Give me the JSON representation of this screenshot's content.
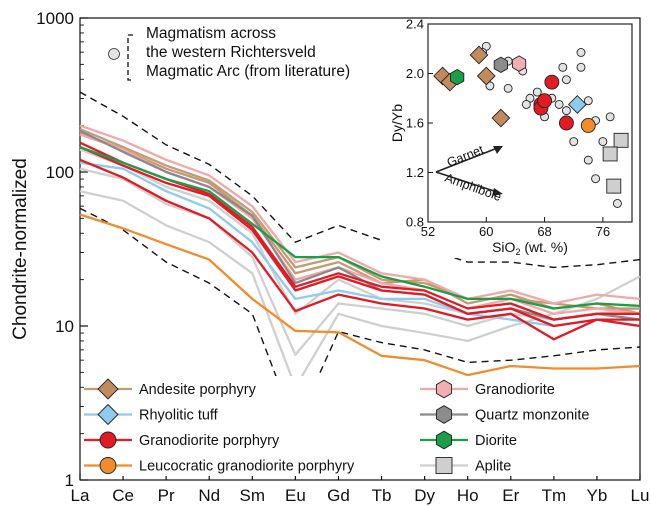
{
  "chart_data": [
    {
      "type": "line",
      "ylabel": "Chondrite-normalized",
      "scale": "log",
      "ylim": [
        1,
        1000
      ],
      "y_ticks": [
        "1",
        "10",
        "100",
        "1000"
      ],
      "categories": [
        "La",
        "Ce",
        "Pr",
        "Nd",
        "Sm",
        "Eu",
        "Gd",
        "Tb",
        "Dy",
        "Ho",
        "Er",
        "Tm",
        "Yb",
        "Lu"
      ],
      "field_legend": [
        "Magmatism across",
        "the western Richtersveld",
        "Magmatic Arc (from literature)"
      ],
      "field": {
        "upper": [
          330,
          230,
          150,
          112,
          70,
          35,
          45,
          36,
          32,
          26,
          26,
          24,
          25,
          27
        ],
        "lower": [
          58,
          42,
          26,
          19,
          12,
          2.2,
          9.2,
          7.8,
          7,
          5.8,
          6,
          6.4,
          7,
          7.3
        ]
      },
      "legend_left": [
        "Andesite porphyry",
        "Rhyolitic tuff",
        "Granodiorite porphyry",
        "Leucocratic granodiorite porphyry"
      ],
      "legend_right": [
        "Granodiorite",
        "Quartz monzonite",
        "Diorite",
        "Aplite"
      ],
      "series": [
        {
          "name": "Aplite",
          "color": "#cfcfcf",
          "lines": [
            [
              75,
              65,
              45,
              35,
              22,
              4,
              12,
              10,
              9,
              8,
              10,
              12,
              15,
              21
            ],
            [
              105,
              90,
              62,
              50,
              28,
              6.5,
              14,
              13,
              12,
              10,
              12,
              11,
              12,
              13
            ],
            [
              140,
              110,
              80,
              65,
              40,
              12,
              20,
              15,
              14,
              12,
              13,
              11,
              12,
              11
            ]
          ]
        },
        {
          "name": "Andesite porphyry",
          "color": "#c49a74",
          "lines": [
            [
              180,
              140,
              105,
              85,
              52,
              22,
              26,
              19,
              20,
              14,
              16,
              13,
              14,
              12
            ],
            [
              190,
              145,
              110,
              88,
              55,
              24,
              28,
              20,
              19,
              15,
              15,
              14,
              13,
              13
            ]
          ]
        },
        {
          "name": "Granodiorite",
          "color": "#f0a8a8",
          "lines": [
            [
              200,
              160,
              120,
              95,
              60,
              26,
              30,
              22,
              20,
              15,
              17,
              14,
              16,
              15
            ],
            [
              175,
              140,
              100,
              80,
              50,
              20,
              24,
              19,
              17,
              13,
              15,
              12,
              13,
              12
            ]
          ]
        },
        {
          "name": "Quartz monzonite",
          "color": "#8a8a8a",
          "lines": [
            [
              185,
              135,
              100,
              80,
              52,
              19,
              24,
              17,
              16,
              12,
              13,
              11,
              12,
              11
            ]
          ]
        },
        {
          "name": "Rhyolitic tuff",
          "color": "#8fcbed",
          "lines": [
            [
              115,
              105,
              75,
              58,
              35,
              15,
              17,
              15,
              15,
              12,
              11,
              10,
              11,
              10
            ]
          ]
        },
        {
          "name": "Granodiorite porphyry",
          "color": "#e01b24",
          "lines": [
            [
              120,
              92,
              65,
              50,
              30,
              12.5,
              16,
              14,
              13,
              11,
              12,
              8.2,
              11,
              10
            ],
            [
              145,
              110,
              85,
              70,
              42,
              17,
              21,
              17,
              16,
              12,
              13,
              10,
              11,
              11
            ],
            [
              155,
              115,
              90,
              72,
              44,
              18,
              22,
              18,
              17,
              13,
              14,
              11,
              12,
              12
            ]
          ]
        },
        {
          "name": "Leucocratic granodiorite porphyry",
          "color": "#f08c2c",
          "lines": [
            [
              53,
              43,
              34,
              27,
              15,
              9.3,
              9.1,
              6.4,
              6,
              4.8,
              5.5,
              5.3,
              5.3,
              5.5
            ]
          ]
        },
        {
          "name": "Diorite",
          "color": "#1a9e4a",
          "lines": [
            [
              145,
              115,
              90,
              75,
              46,
              28,
              28,
              21,
              18,
              15,
              15,
              13,
              14,
              13.5
            ]
          ]
        }
      ]
    },
    {
      "type": "scatter",
      "xlabel": "SiO2 (wt. %)",
      "ylabel": "Dy/Yb",
      "xlim": [
        52,
        80
      ],
      "ylim": [
        0.8,
        2.4
      ],
      "x_ticks": [
        "52",
        "60",
        "68",
        "76"
      ],
      "y_ticks": [
        "0.8",
        "1.2",
        "1.6",
        "2.0",
        "2.4"
      ],
      "arrow_labels": [
        "Garnet",
        "Amphibole"
      ],
      "series": [
        {
          "name": "Literature",
          "marker": "circle",
          "color": "#e3e3e3",
          "points": [
            [
              60,
              2.22
            ],
            [
              59.5,
              2.17
            ],
            [
              63,
              2.1
            ],
            [
              65,
              2.02
            ],
            [
              60.5,
              1.9
            ],
            [
              63,
              1.88
            ],
            [
              66,
              1.8
            ],
            [
              65.5,
              1.75
            ],
            [
              70,
              1.75
            ],
            [
              70.5,
              2.05
            ],
            [
              71,
              1.95
            ],
            [
              73,
              2.05
            ],
            [
              73,
              2.17
            ],
            [
              74,
              1.78
            ],
            [
              75,
              1.62
            ],
            [
              77,
              1.65
            ],
            [
              74,
              1.3
            ],
            [
              75,
              1.15
            ],
            [
              78,
              0.95
            ],
            [
              76,
              1.45
            ],
            [
              72,
              1.45
            ],
            [
              67,
              1.85
            ],
            [
              68,
              1.65
            ],
            [
              69,
              1.8
            ],
            [
              71,
              1.7
            ]
          ]
        },
        {
          "name": "Andesite porphyry",
          "marker": "diamond",
          "color": "#c28b5e",
          "points": [
            [
              54,
              1.98
            ],
            [
              55,
              1.93
            ],
            [
              59,
              2.15
            ],
            [
              60,
              1.98
            ],
            [
              62,
              1.64
            ]
          ]
        },
        {
          "name": "Granodiorite",
          "marker": "hexagon",
          "color": "#f2aeb0",
          "points": [
            [
              64.5,
              2.08
            ]
          ]
        },
        {
          "name": "Quartz monzonite",
          "marker": "hexagon",
          "color": "#8c8c8c",
          "points": [
            [
              62,
              2.07
            ]
          ]
        },
        {
          "name": "Diorite",
          "marker": "hexagon",
          "color": "#1a9e4a",
          "points": [
            [
              56,
              1.97
            ]
          ]
        },
        {
          "name": "Rhyolitic tuff",
          "marker": "diamond",
          "color": "#8fcbed",
          "points": [
            [
              72.5,
              1.75
            ]
          ]
        },
        {
          "name": "Granodiorite porphyry",
          "marker": "circle",
          "color": "#e01b24",
          "points": [
            [
              67.5,
              1.75
            ],
            [
              67.5,
              1.72
            ],
            [
              68,
              1.78
            ],
            [
              69,
              1.93
            ],
            [
              71,
              1.6
            ]
          ]
        },
        {
          "name": "Leucocratic granodiorite porphyry",
          "marker": "circle",
          "color": "#f08c2c",
          "points": [
            [
              74,
              1.58
            ]
          ]
        },
        {
          "name": "Aplite",
          "marker": "square",
          "color": "#cfcfcf",
          "points": [
            [
              78.5,
              1.46
            ],
            [
              77,
              1.35
            ],
            [
              77.5,
              1.09
            ]
          ]
        }
      ]
    }
  ]
}
